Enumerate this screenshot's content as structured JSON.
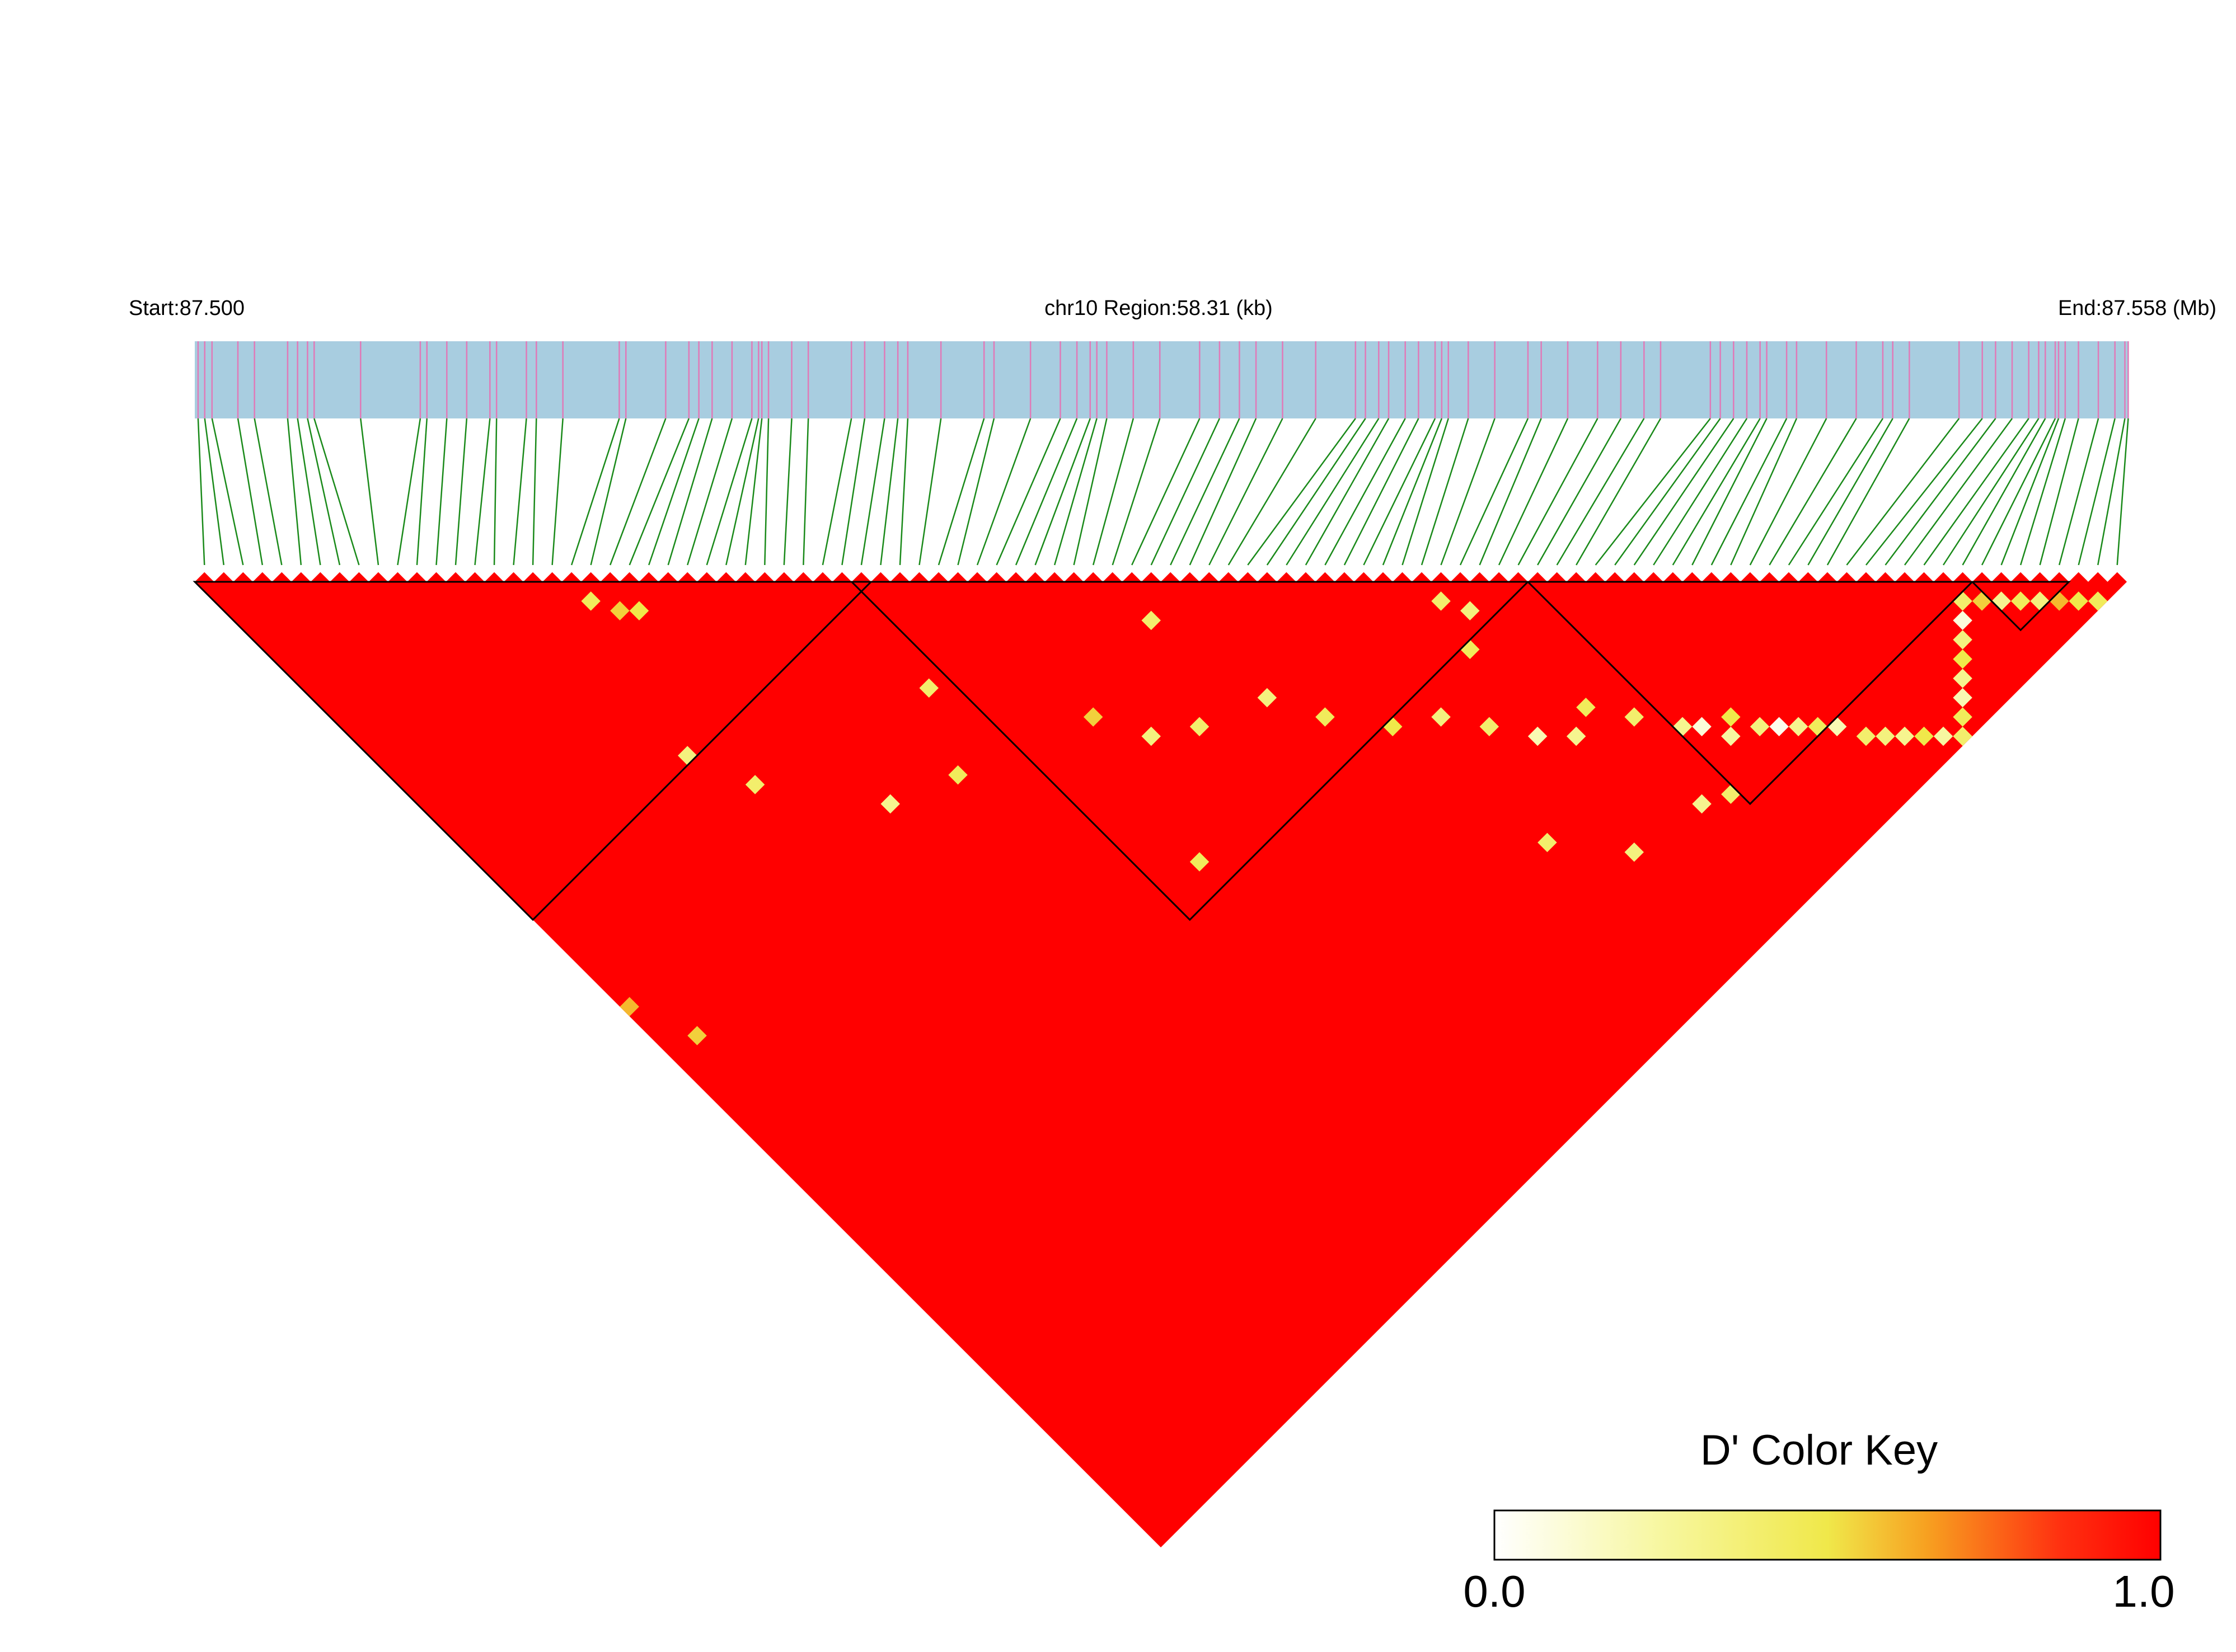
{
  "chart_data": {
    "type": "heatmap",
    "subtype": "linkage-disequilibrium-triangle",
    "header": {
      "start_label": "Start:87.500",
      "region_label": "chr10 Region:58.31 (kb)",
      "end_label": "End:87.558 (Mb)"
    },
    "color_key": {
      "title": "D' Color Key",
      "min_label": "0.0",
      "max_label": "1.0",
      "range": [
        0.0,
        1.0
      ],
      "stops": [
        "#ffffff",
        "#f7f7a0",
        "#f0e84a",
        "#f7a020",
        "#ff3010",
        "#ff0000"
      ]
    },
    "colors": {
      "chromosome_band": "#a8cde0",
      "snp_mark": "#e07ab8",
      "connector_line": "#1a8a1a",
      "block_outline": "#000000",
      "ld_high": "#ff0000"
    },
    "n_snps": 100,
    "snp_positions_kb": [
      0.1,
      0.52,
      1.3,
      2.8,
      3.1,
      3.4,
      3.6,
      6.8,
      7.0,
      7.6,
      8.2,
      8.9,
      9.1,
      10.3,
      11.1,
      12.8,
      13.0,
      14.2,
      14.9,
      15.2,
      15.6,
      16.2,
      16.8,
      17.0,
      17.1,
      17.3,
      18.0,
      18.5,
      19.8,
      20.2,
      21.2,
      21.5,
      22.5,
      23.8,
      25.2,
      26.1,
      26.6,
      27.0,
      27.2,
      27.5,
      28.3,
      29.1,
      30.3,
      30.9,
      32.0,
      32.8,
      33.8,
      35.0,
      35.3,
      35.7,
      36.0,
      36.5,
      36.9,
      37.4,
      37.6,
      37.8,
      38.4,
      39.2,
      40.6,
      41.4,
      42.3,
      43.0,
      44.2,
      45.7,
      46.0,
      46.4,
      46.8,
      47.2,
      47.4,
      48.3,
      49.2,
      50.1,
      50.9,
      51.7,
      53.2,
      54.3,
      54.8,
      55.3,
      55.6,
      55.8,
      56.2,
      56.4,
      56.8,
      57.4,
      58.2,
      0.3,
      1.8,
      5.0,
      10.0,
      20.8,
      24.1,
      31.5,
      40.2,
      43.7,
      48.0,
      51.2,
      53.9,
      56.1,
      57.9,
      58.3
    ],
    "ld_blocks": [
      {
        "first_snp": 1,
        "last_snp": 35
      },
      {
        "first_snp": 35,
        "last_snp": 69
      },
      {
        "first_snp": 70,
        "last_snp": 92
      },
      {
        "first_snp": 93,
        "last_snp": 97
      }
    ],
    "dprime_background": 1.0,
    "dprime_cells": [
      {
        "i": 20,
        "j": 22,
        "v": 0.45
      },
      {
        "i": 21,
        "j": 24,
        "v": 0.55
      },
      {
        "i": 22,
        "j": 25,
        "v": 0.5
      },
      {
        "i": 33,
        "j": 44,
        "v": 0.4
      },
      {
        "i": 17,
        "j": 35,
        "v": 0.35
      },
      {
        "i": 19,
        "j": 40,
        "v": 0.4
      },
      {
        "i": 30,
        "j": 50,
        "v": 0.45
      },
      {
        "i": 25,
        "j": 48,
        "v": 0.3
      },
      {
        "i": 40,
        "j": 54,
        "v": 0.55
      },
      {
        "i": 45,
        "j": 60,
        "v": 0.4
      },
      {
        "i": 50,
        "j": 62,
        "v": 0.35
      },
      {
        "i": 52,
        "j": 66,
        "v": 0.45
      },
      {
        "i": 55,
        "j": 70,
        "v": 0.5
      },
      {
        "i": 58,
        "j": 72,
        "v": 0.35
      },
      {
        "i": 60,
        "j": 75,
        "v": 0.4
      },
      {
        "i": 62,
        "j": 78,
        "v": 0.2
      },
      {
        "i": 64,
        "j": 80,
        "v": 0.3
      },
      {
        "i": 66,
        "j": 79,
        "v": 0.45
      },
      {
        "i": 68,
        "j": 82,
        "v": 0.4
      },
      {
        "i": 70,
        "j": 85,
        "v": 0.3
      },
      {
        "i": 71,
        "j": 86,
        "v": 0.1
      },
      {
        "i": 72,
        "j": 88,
        "v": 0.25
      },
      {
        "i": 73,
        "j": 87,
        "v": 0.5
      },
      {
        "i": 74,
        "j": 89,
        "v": 0.35
      },
      {
        "i": 75,
        "j": 90,
        "v": 0.05
      },
      {
        "i": 76,
        "j": 91,
        "v": 0.3
      },
      {
        "i": 77,
        "j": 92,
        "v": 0.45
      },
      {
        "i": 78,
        "j": 93,
        "v": 0.2
      },
      {
        "i": 79,
        "j": 95,
        "v": 0.4
      },
      {
        "i": 80,
        "j": 96,
        "v": 0.35
      },
      {
        "i": 81,
        "j": 97,
        "v": 0.3
      },
      {
        "i": 82,
        "j": 98,
        "v": 0.5
      },
      {
        "i": 83,
        "j": 99,
        "v": 0.25
      },
      {
        "i": 84,
        "j": 100,
        "v": 0.4
      },
      {
        "i": 85,
        "j": 99,
        "v": 0.45
      },
      {
        "i": 86,
        "j": 98,
        "v": 0.2
      },
      {
        "i": 87,
        "j": 97,
        "v": 0.3
      },
      {
        "i": 88,
        "j": 96,
        "v": 0.5
      },
      {
        "i": 89,
        "j": 95,
        "v": 0.35
      },
      {
        "i": 90,
        "j": 94,
        "v": 0.1
      },
      {
        "i": 91,
        "j": 93,
        "v": 0.4
      },
      {
        "i": 92,
        "j": 94,
        "v": 0.55
      },
      {
        "i": 93,
        "j": 95,
        "v": 0.3
      },
      {
        "i": 94,
        "j": 96,
        "v": 0.45
      },
      {
        "i": 95,
        "j": 97,
        "v": 0.35
      },
      {
        "i": 96,
        "j": 98,
        "v": 0.6
      },
      {
        "i": 97,
        "j": 99,
        "v": 0.5
      },
      {
        "i": 98,
        "j": 100,
        "v": 0.45
      },
      {
        "i": 64,
        "j": 66,
        "v": 0.4
      },
      {
        "i": 65,
        "j": 68,
        "v": 0.35
      },
      {
        "i": 63,
        "j": 70,
        "v": 0.45
      },
      {
        "i": 1,
        "j": 45,
        "v": 0.6
      },
      {
        "i": 3,
        "j": 50,
        "v": 0.55
      },
      {
        "i": 48,
        "j": 52,
        "v": 0.4
      },
      {
        "i": 42,
        "j": 58,
        "v": 0.35
      },
      {
        "i": 38,
        "j": 67,
        "v": 0.45
      },
      {
        "i": 57,
        "j": 84,
        "v": 0.4
      },
      {
        "i": 61,
        "j": 89,
        "v": 0.35
      },
      {
        "i": 67,
        "j": 90,
        "v": 0.3
      },
      {
        "i": 69,
        "j": 91,
        "v": 0.4
      }
    ]
  }
}
